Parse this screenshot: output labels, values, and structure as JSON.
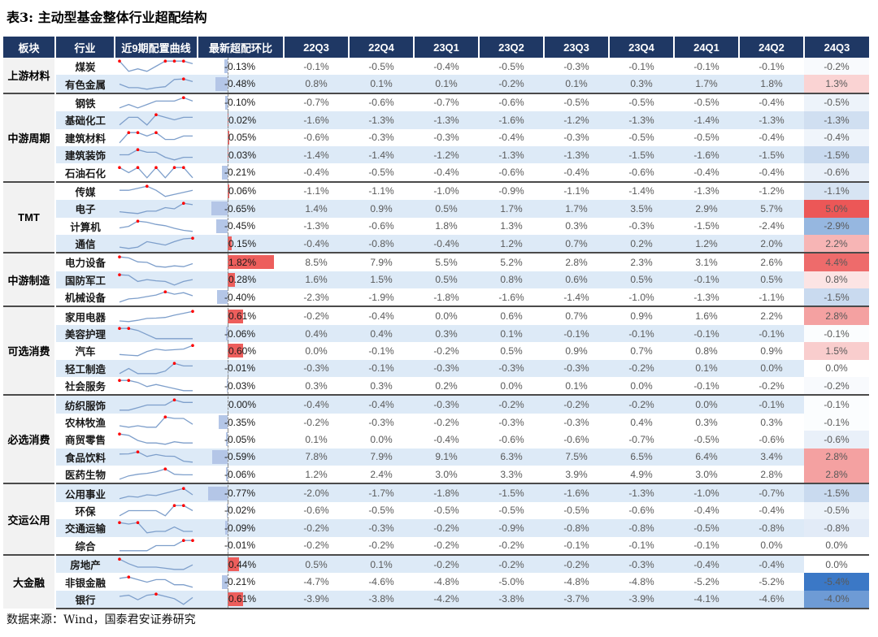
{
  "title": "表3:  主动型基金整体行业超配结构",
  "footer": "数据来源：Wind，国泰君安证券研究",
  "colors": {
    "header_bg": "#1F3864",
    "stripe": "#DDEAF7",
    "sector_bg": "#F2F2F2",
    "bar_positive": "#ED5E5C",
    "bar_negative": "#B4C6E7",
    "scale_positive_max": "#EC5757",
    "scale_negative_max": "#3B78C6",
    "spark_line": "#7E9FCB",
    "spark_dot": "#FF0000",
    "value_text": "#595959"
  },
  "chart_data": {
    "type": "table",
    "title": "表3:  主动型基金整体行业超配结构",
    "columns": [
      "板块",
      "行业",
      "近9期配置曲线",
      "最新超配环比",
      "22Q3",
      "22Q4",
      "23Q1",
      "23Q2",
      "23Q3",
      "23Q4",
      "24Q1",
      "24Q2",
      "24Q3"
    ],
    "quarters": [
      "22Q3",
      "22Q4",
      "23Q1",
      "23Q2",
      "23Q3",
      "23Q4",
      "24Q1",
      "24Q2",
      "24Q3"
    ],
    "color_scale_domain": {
      "min": -5.4,
      "max": 5.0
    },
    "sectors": [
      {
        "name": "上游材料",
        "rows": [
          {
            "industry": "煤炭",
            "latest_mom": -0.13,
            "values": [
              -0.1,
              -0.5,
              -0.4,
              -0.5,
              -0.3,
              -0.1,
              -0.1,
              -0.1,
              -0.2
            ],
            "striped": false
          },
          {
            "industry": "有色金属",
            "latest_mom": -0.48,
            "values": [
              0.8,
              0.1,
              0.1,
              -0.2,
              0.1,
              0.3,
              1.7,
              1.8,
              1.3
            ],
            "striped": true
          }
        ]
      },
      {
        "name": "中游周期",
        "rows": [
          {
            "industry": "钢铁",
            "latest_mom": -0.1,
            "values": [
              -0.7,
              -0.6,
              -0.7,
              -0.6,
              -0.5,
              -0.5,
              -0.5,
              -0.4,
              -0.5
            ],
            "striped": false
          },
          {
            "industry": "基础化工",
            "latest_mom": 0.02,
            "values": [
              -1.6,
              -1.3,
              -1.3,
              -1.6,
              -1.2,
              -1.3,
              -1.4,
              -1.3,
              -1.3
            ],
            "striped": true
          },
          {
            "industry": "建筑材料",
            "latest_mom": 0.05,
            "values": [
              -0.6,
              -0.3,
              -0.3,
              -0.4,
              -0.3,
              -0.5,
              -0.5,
              -0.4,
              -0.4
            ],
            "striped": false
          },
          {
            "industry": "建筑装饰",
            "latest_mom": 0.03,
            "values": [
              -1.4,
              -1.4,
              -1.2,
              -1.3,
              -1.3,
              -1.5,
              -1.6,
              -1.5,
              -1.5
            ],
            "striped": true
          },
          {
            "industry": "石油石化",
            "latest_mom": -0.21,
            "values": [
              -0.4,
              -0.5,
              -0.4,
              -0.6,
              -0.4,
              -0.6,
              -0.4,
              -0.4,
              -0.6
            ],
            "striped": false
          }
        ]
      },
      {
        "name": "TMT",
        "rows": [
          {
            "industry": "传媒",
            "latest_mom": 0.06,
            "values": [
              -1.1,
              -1.1,
              -1.0,
              -0.9,
              -1.1,
              -1.4,
              -1.3,
              -1.2,
              -1.1
            ],
            "striped": false
          },
          {
            "industry": "电子",
            "latest_mom": -0.65,
            "values": [
              1.4,
              0.9,
              0.5,
              1.7,
              1.7,
              3.5,
              2.9,
              5.7,
              5.0
            ],
            "striped": true
          },
          {
            "industry": "计算机",
            "latest_mom": -0.45,
            "values": [
              -1.3,
              -0.6,
              1.8,
              1.3,
              0.3,
              -0.3,
              -1.5,
              -2.4,
              -2.9
            ],
            "striped": false
          },
          {
            "industry": "通信",
            "latest_mom": 0.15,
            "values": [
              -0.4,
              -0.8,
              -0.4,
              1.2,
              0.7,
              0.2,
              1.2,
              2.0,
              2.2
            ],
            "striped": true
          }
        ]
      },
      {
        "name": "中游制造",
        "rows": [
          {
            "industry": "电力设备",
            "latest_mom": 1.82,
            "values": [
              8.5,
              7.9,
              5.5,
              5.2,
              2.8,
              2.3,
              3.1,
              2.6,
              4.4
            ],
            "striped": false
          },
          {
            "industry": "国防军工",
            "latest_mom": 0.28,
            "values": [
              1.6,
              1.5,
              0.5,
              0.8,
              0.6,
              0.5,
              -0.1,
              0.5,
              0.8
            ],
            "striped": true
          },
          {
            "industry": "机械设备",
            "latest_mom": -0.4,
            "values": [
              -2.3,
              -1.9,
              -1.8,
              -1.6,
              -1.4,
              -1.0,
              -1.3,
              -1.1,
              -1.5
            ],
            "striped": false
          }
        ]
      },
      {
        "name": "可选消费",
        "rows": [
          {
            "industry": "家用电器",
            "latest_mom": 0.61,
            "values": [
              -0.2,
              -0.4,
              0.0,
              0.6,
              0.7,
              0.9,
              1.6,
              2.2,
              2.8
            ],
            "striped": false
          },
          {
            "industry": "美容护理",
            "latest_mom": -0.06,
            "values": [
              0.4,
              0.4,
              0.3,
              0.1,
              -0.1,
              -0.1,
              -0.1,
              -0.1,
              -0.1
            ],
            "striped": true
          },
          {
            "industry": "汽车",
            "latest_mom": 0.6,
            "values": [
              0.0,
              -0.1,
              -0.2,
              0.5,
              0.9,
              0.7,
              0.8,
              0.9,
              1.5
            ],
            "striped": false
          },
          {
            "industry": "轻工制造",
            "latest_mom": -0.01,
            "values": [
              -0.3,
              -0.1,
              -0.3,
              -0.3,
              -0.3,
              -0.2,
              0.1,
              0.0,
              0.0
            ],
            "striped": true
          },
          {
            "industry": "社会服务",
            "latest_mom": -0.03,
            "values": [
              0.3,
              0.3,
              0.2,
              0.0,
              0.1,
              0.0,
              -0.1,
              -0.2,
              -0.2
            ],
            "striped": false
          }
        ]
      },
      {
        "name": "必选消费",
        "rows": [
          {
            "industry": "纺织服饰",
            "latest_mom": 0.0,
            "values": [
              -0.4,
              -0.4,
              -0.3,
              -0.2,
              -0.2,
              -0.2,
              0.0,
              -0.1,
              -0.1
            ],
            "striped": true
          },
          {
            "industry": "农林牧渔",
            "latest_mom": -0.35,
            "values": [
              -0.2,
              -0.3,
              -0.2,
              -0.3,
              -0.3,
              0.4,
              0.3,
              0.3,
              -0.1
            ],
            "striped": false
          },
          {
            "industry": "商贸零售",
            "latest_mom": -0.05,
            "values": [
              0.1,
              0.0,
              -0.4,
              -0.6,
              -0.6,
              -0.7,
              -0.5,
              -0.6,
              -0.6
            ],
            "striped": false
          },
          {
            "industry": "食品饮料",
            "latest_mom": -0.59,
            "values": [
              7.8,
              7.9,
              9.1,
              6.3,
              7.5,
              6.5,
              6.4,
              3.4,
              2.8
            ],
            "striped": true
          },
          {
            "industry": "医药生物",
            "latest_mom": -0.06,
            "values": [
              1.2,
              2.4,
              3.0,
              3.3,
              3.9,
              4.9,
              3.0,
              2.8,
              2.8
            ],
            "striped": false
          }
        ]
      },
      {
        "name": "交运公用",
        "rows": [
          {
            "industry": "公用事业",
            "latest_mom": -0.77,
            "values": [
              -2.0,
              -1.7,
              -1.8,
              -1.5,
              -1.6,
              -1.3,
              -1.0,
              -0.7,
              -1.5
            ],
            "striped": true
          },
          {
            "industry": "环保",
            "latest_mom": -0.02,
            "values": [
              -0.6,
              -0.5,
              -0.5,
              -0.5,
              -0.5,
              -0.6,
              -0.4,
              -0.4,
              -0.5
            ],
            "striped": false
          },
          {
            "industry": "交通运输",
            "latest_mom": -0.09,
            "values": [
              -0.2,
              -0.3,
              -0.2,
              -0.9,
              -0.8,
              -0.8,
              -0.5,
              -0.8,
              -0.8
            ],
            "striped": true
          },
          {
            "industry": "综合",
            "latest_mom": -0.01,
            "values": [
              -0.2,
              -0.2,
              -0.2,
              -0.2,
              -0.1,
              -0.1,
              -0.1,
              0.0,
              0.0
            ],
            "striped": false
          }
        ]
      },
      {
        "name": "大金融",
        "rows": [
          {
            "industry": "房地产",
            "latest_mom": 0.44,
            "values": [
              0.5,
              0.1,
              -0.2,
              -0.2,
              -0.2,
              -0.3,
              -0.4,
              -0.4,
              0.0
            ],
            "striped": true
          },
          {
            "industry": "非银金融",
            "latest_mom": -0.21,
            "values": [
              -4.7,
              -4.6,
              -4.8,
              -5.0,
              -4.8,
              -4.8,
              -5.2,
              -5.2,
              -5.4
            ],
            "striped": false
          },
          {
            "industry": "银行",
            "latest_mom": 0.61,
            "values": [
              -3.9,
              -3.8,
              -4.2,
              -3.8,
              -3.7,
              -3.9,
              -4.1,
              -4.6,
              -4.0
            ],
            "striped": true
          }
        ]
      }
    ]
  }
}
